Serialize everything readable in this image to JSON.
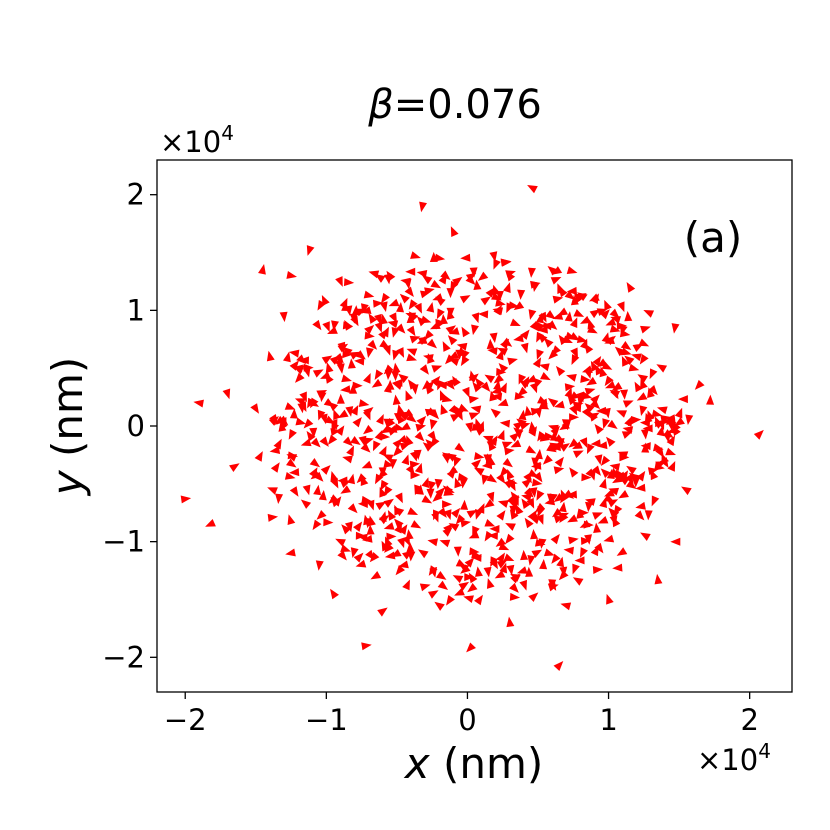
{
  "chart_data": {
    "type": "scatter",
    "title": "β=0.076",
    "title_symbol": "β",
    "title_value": "=0.076",
    "panel_label": "(a)",
    "xlabel_symbol": "x",
    "xlabel_unit": " (nm)",
    "ylabel_symbol": "y",
    "ylabel_unit": " (nm)",
    "x_multiplier": "×10",
    "x_multiplier_exp": "4",
    "y_multiplier": "×10",
    "y_multiplier_exp": "4",
    "xlim": [
      -2.2,
      2.3
    ],
    "ylim": [
      -2.3,
      2.3
    ],
    "xticks": [
      -2,
      -1,
      0,
      1,
      2
    ],
    "xtick_labels": [
      "−2",
      "−1",
      "0",
      "1",
      "2"
    ],
    "yticks": [
      -2,
      -1,
      0,
      1,
      2
    ],
    "ytick_labels": [
      "−2",
      "−1",
      "0",
      "1",
      "2"
    ],
    "marker": "triangle (oriented)",
    "marker_color": "#ff0000",
    "grid": false,
    "points": [
      [
        -2.0,
        -0.63
      ],
      [
        -1.9,
        0.2
      ],
      [
        -1.82,
        -0.85
      ],
      [
        -1.7,
        0.28
      ],
      [
        -1.65,
        -0.35
      ],
      [
        -1.45,
        1.35
      ],
      [
        -1.38,
        -0.55
      ],
      [
        -1.25,
        1.3
      ],
      [
        -1.12,
        1.52
      ],
      [
        -1.05,
        -1.2
      ],
      [
        -0.72,
        -1.9
      ],
      [
        -0.32,
        1.9
      ],
      [
        -0.1,
        1.68
      ],
      [
        0.02,
        -1.92
      ],
      [
        0.46,
        2.06
      ],
      [
        0.65,
        -2.07
      ],
      [
        1.15,
        1.2
      ],
      [
        1.47,
        0.85
      ],
      [
        1.64,
        0.35
      ],
      [
        1.72,
        0.22
      ],
      [
        2.07,
        -0.07
      ],
      [
        1.55,
        -0.55
      ],
      [
        1.48,
        -1.0
      ],
      [
        1.35,
        -1.33
      ],
      [
        1.0,
        -1.5
      ],
      [
        0.7,
        -1.55
      ],
      [
        0.3,
        -1.7
      ],
      [
        -0.2,
        -1.55
      ],
      [
        -0.6,
        -1.6
      ],
      [
        -0.95,
        -1.45
      ],
      [
        -1.25,
        -1.1
      ],
      [
        -1.4,
        0.6
      ],
      [
        -1.5,
        0.15
      ],
      [
        -1.3,
        0.95
      ],
      [
        -0.9,
        1.25
      ],
      [
        -0.55,
        1.3
      ],
      [
        -0.2,
        1.45
      ],
      [
        0.2,
        1.4
      ],
      [
        0.6,
        1.35
      ],
      [
        0.9,
        1.1
      ]
    ],
    "n_generated_points": 900
  }
}
